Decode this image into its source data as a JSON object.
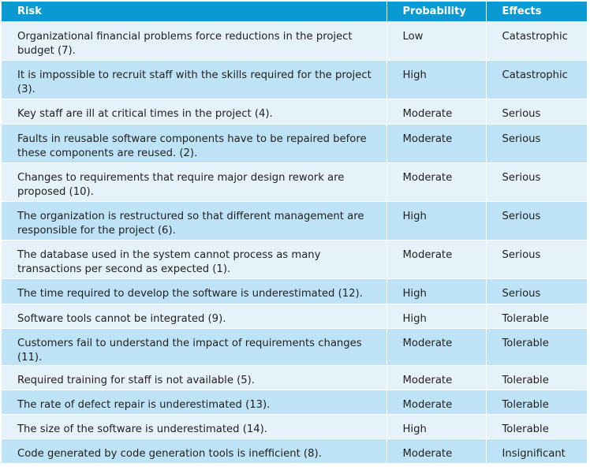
{
  "headers": {
    "risk": "Risk",
    "probability": "Probability",
    "effects": "Effects"
  },
  "rows": [
    {
      "risk": "Organizational financial problems force reductions in the project budget (7).",
      "probability": "Low",
      "effects": "Catastrophic"
    },
    {
      "risk": "It is impossible to recruit staff with the skills required for the project (3).",
      "probability": "High",
      "effects": "Catastrophic"
    },
    {
      "risk": "Key staff are ill at critical times in the project (4).",
      "probability": "Moderate",
      "effects": "Serious"
    },
    {
      "risk": "Faults in reusable software components have to be repaired before these components are reused. (2).",
      "probability": "Moderate",
      "effects": "Serious"
    },
    {
      "risk": "Changes to requirements that require major design rework are proposed (10).",
      "probability": "Moderate",
      "effects": "Serious"
    },
    {
      "risk": "The organization is restructured so that different management are responsible for the project (6).",
      "probability": "High",
      "effects": "Serious"
    },
    {
      "risk": "The database used in the system cannot process as many transactions per second as expected (1).",
      "probability": "Moderate",
      "effects": "Serious"
    },
    {
      "risk": "The time required to develop the software is underestimated (12).",
      "probability": "High",
      "effects": "Serious"
    },
    {
      "risk": "Software tools cannot be integrated (9).",
      "probability": "High",
      "effects": "Tolerable"
    },
    {
      "risk": "Customers fail to understand the impact of requirements changes (11).",
      "probability": "Moderate",
      "effects": "Tolerable"
    },
    {
      "risk": "Required training for staff is not available (5).",
      "probability": "Moderate",
      "effects": "Tolerable"
    },
    {
      "risk": "The rate of defect repair is underestimated (13).",
      "probability": "Moderate",
      "effects": "Tolerable"
    },
    {
      "risk": "The size of the software is underestimated (14).",
      "probability": "High",
      "effects": "Tolerable"
    },
    {
      "risk": "Code generated by code generation tools is inefficient (8).",
      "probability": "Moderate",
      "effects": "Insignificant"
    }
  ]
}
